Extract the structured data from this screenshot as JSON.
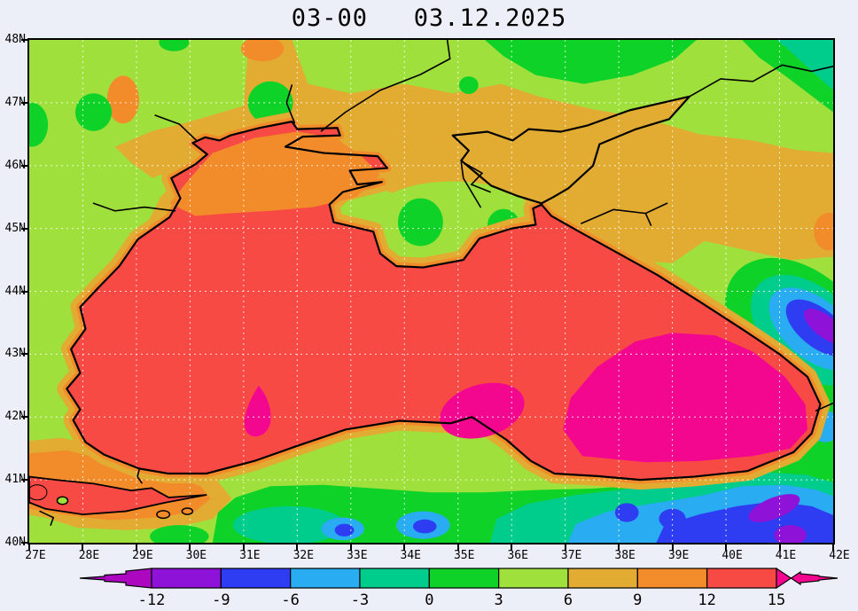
{
  "title": "03-00   03.12.2025",
  "map": {
    "lat_labels": [
      "48N",
      "47N",
      "46N",
      "45N",
      "44N",
      "43N",
      "42N",
      "41N",
      "40N"
    ],
    "lon_labels": [
      "27E",
      "28E",
      "29E",
      "30E",
      "31E",
      "32E",
      "33E",
      "34E",
      "35E",
      "36E",
      "37E",
      "38E",
      "39E",
      "40E",
      "41E",
      "42E"
    ],
    "grid_style": "dotted-1-degree"
  },
  "colorbar": {
    "tick_labels": [
      "-12",
      "-9",
      "-6",
      "-3",
      "0",
      "3",
      "6",
      "9",
      "12",
      "15"
    ],
    "segment_colors": [
      "#8e12d8",
      "#2e3cf2",
      "#29acf2",
      "#00cc8c",
      "#0fd228",
      "#a0e03c",
      "#e2ab32",
      "#f28c2a",
      "#f84a45"
    ],
    "below_arrow_color": "#ab08c0",
    "above_arrow_color": "#f2078e"
  },
  "palette": {
    "page": "#edeff8",
    "ygreen": "#a0e03c",
    "green": "#0fd228",
    "teal": "#00cc8c",
    "cyan": "#29acf2",
    "blue": "#2e3cf2",
    "purple": "#8e12d8",
    "mustard": "#e2ab32",
    "orange": "#f28c2a",
    "red": "#f84a45",
    "magenta": "#f2078e",
    "coastline": "#000000",
    "grid": "#ffffff"
  },
  "chart_data": {
    "type": "heatmap",
    "title": "03-00   03.12.2025",
    "x_axis": {
      "ticks": [
        "27E",
        "28E",
        "29E",
        "30E",
        "31E",
        "32E",
        "33E",
        "34E",
        "35E",
        "36E",
        "37E",
        "38E",
        "39E",
        "40E",
        "41E",
        "42E"
      ],
      "range": [
        27,
        42
      ]
    },
    "y_axis": {
      "ticks": [
        "40N",
        "41N",
        "42N",
        "43N",
        "44N",
        "45N",
        "46N",
        "47N",
        "48N"
      ],
      "range": [
        40,
        48
      ]
    },
    "legend": {
      "levels": [
        -12,
        -9,
        -6,
        -3,
        0,
        3,
        6,
        9,
        12,
        15
      ],
      "colors": [
        "#ab08c0",
        "#8e12d8",
        "#2e3cf2",
        "#29acf2",
        "#00cc8c",
        "#0fd228",
        "#a0e03c",
        "#e2ab32",
        "#f28c2a",
        "#f84a45",
        "#f2078e"
      ],
      "position": "bottom",
      "open_ended": true
    },
    "grid": true,
    "field_summary": [
      {
        "region": "Black Sea open water",
        "value_range": "12 to 15"
      },
      {
        "region": "Eastern Black Sea core and south-central cores",
        "value_range": "above 15"
      },
      {
        "region": "Northwest shelf near Odessa and west coastal strip",
        "value_range": "9 to 12"
      },
      {
        "region": "Land north of the sea, Crimea north, Azov area",
        "value_range": "6 to 9"
      },
      {
        "region": "Inland plains west and north",
        "value_range": "3 to 6"
      },
      {
        "region": "Anatolian interior band along 40-41N",
        "value_range": "0 to 3"
      },
      {
        "region": "Pontic/NE Anatolia cold blobs",
        "value_range": "-3 to -9"
      },
      {
        "region": "Caucasus mountain cold core near 41.5E 43.3N",
        "value_range": "-9 to below -12"
      },
      {
        "region": "Sea of Marmara",
        "value_range": "12 to 15"
      }
    ]
  }
}
